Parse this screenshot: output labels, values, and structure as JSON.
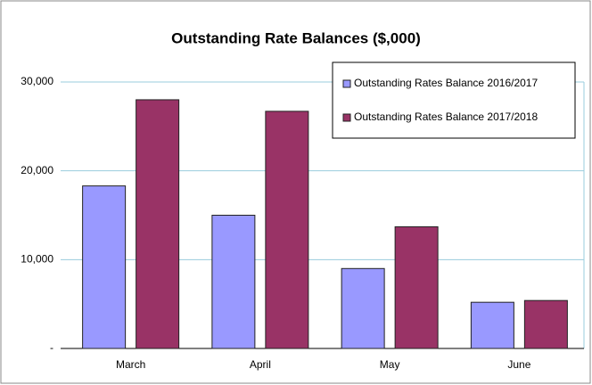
{
  "chart_data": {
    "type": "bar",
    "title": "Outstanding Rate Balances ($,000)",
    "categories": [
      "March",
      "April",
      "May",
      "June"
    ],
    "series": [
      {
        "name": "Outstanding Rates Balance 2016/2017",
        "color": "#9999ff",
        "values": [
          18300,
          15000,
          9000,
          5200
        ]
      },
      {
        "name": "Outstanding Rates Balance 2017/2018",
        "color": "#993366",
        "values": [
          28000,
          26700,
          13700,
          5400
        ]
      }
    ],
    "ylim": [
      0,
      30000
    ],
    "yticks": [
      {
        "value": 0,
        "label": "-"
      },
      {
        "value": 10000,
        "label": "10,000"
      },
      {
        "value": 20000,
        "label": "20,000"
      },
      {
        "value": 30000,
        "label": "30,000"
      }
    ],
    "grid": true,
    "legend": "upper right"
  }
}
